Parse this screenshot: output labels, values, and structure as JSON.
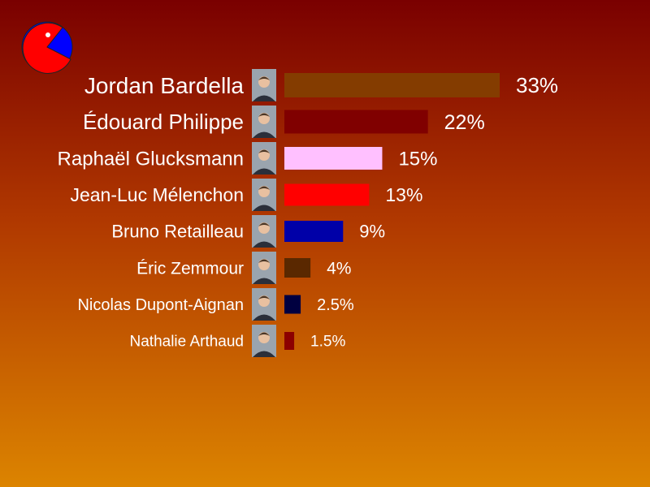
{
  "chart_data": {
    "type": "bar",
    "orientation": "horizontal",
    "title": "",
    "xlabel": "",
    "ylabel": "",
    "unit": "%",
    "categories": [
      "Jordan Bardella",
      "Édouard Philippe",
      "Raphaël Glucksmann",
      "Jean-Luc Mélenchon",
      "Bruno Retailleau",
      "Éric Zemmour",
      "Nicolas Dupont-Aignan",
      "Nathalie Arthaud"
    ],
    "values": [
      33,
      22,
      15,
      13,
      9,
      4,
      2.5,
      1.5
    ],
    "value_labels": [
      "33%",
      "22%",
      "15%",
      "13%",
      "9%",
      "4%",
      "2.5%",
      "1.5%"
    ],
    "colors": [
      "#843c00",
      "#800000",
      "#ffc0ff",
      "#ff0000",
      "#0000a8",
      "#5a2800",
      "#000040",
      "#8c0000"
    ],
    "xlim": [
      0,
      33
    ],
    "grid": false,
    "legend": "none",
    "background": "orange-red gradient"
  },
  "logo": {
    "icon": "pacman-pie-icon",
    "colors": [
      "#ff0000",
      "#0000ff",
      "#ffffff"
    ]
  },
  "portraits": {
    "icon": "person-portrait-icon"
  }
}
